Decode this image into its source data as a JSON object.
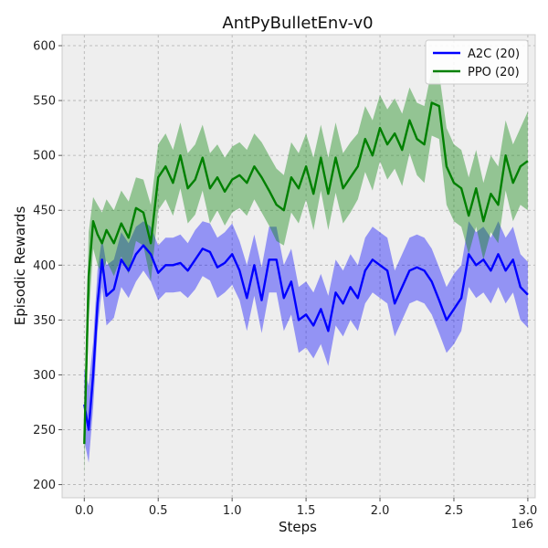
{
  "chart_data": {
    "type": "line",
    "title": "AntPyBulletEnv-v0",
    "xlabel": "Steps",
    "ylabel": "Episodic Rewards",
    "x_offset_label": "1e6",
    "xlim": [
      -0.15,
      3.05
    ],
    "ylim": [
      188,
      610
    ],
    "x_ticks": [
      0,
      0.5,
      1.0,
      1.5,
      2.0,
      2.5,
      3.0
    ],
    "x_tick_labels": [
      "0.0",
      "0.5",
      "1.0",
      "1.5",
      "2.0",
      "2.5",
      "3.0"
    ],
    "y_ticks": [
      200,
      250,
      300,
      350,
      400,
      450,
      500,
      550,
      600
    ],
    "y_tick_labels": [
      "200",
      "250",
      "300",
      "350",
      "400",
      "450",
      "500",
      "550",
      "600"
    ],
    "grid": true,
    "legend_position": "top-right",
    "colors": {
      "plot_bg": "#eeeeee",
      "grid": "#b0b0b0",
      "frame": "#cccccc"
    },
    "series": [
      {
        "name": "A2C (20)",
        "color": "#0000ff",
        "x": [
          0,
          0.03,
          0.06,
          0.09,
          0.12,
          0.15,
          0.2,
          0.25,
          0.3,
          0.35,
          0.4,
          0.45,
          0.5,
          0.55,
          0.6,
          0.65,
          0.7,
          0.75,
          0.8,
          0.85,
          0.9,
          0.95,
          1.0,
          1.05,
          1.1,
          1.15,
          1.2,
          1.25,
          1.3,
          1.35,
          1.4,
          1.45,
          1.5,
          1.55,
          1.6,
          1.65,
          1.7,
          1.75,
          1.8,
          1.85,
          1.9,
          1.95,
          2.0,
          2.05,
          2.1,
          2.15,
          2.2,
          2.25,
          2.3,
          2.35,
          2.4,
          2.45,
          2.5,
          2.55,
          2.6,
          2.65,
          2.7,
          2.75,
          2.8,
          2.85,
          2.9,
          2.95,
          3.0
        ],
        "y": [
          273,
          250,
          300,
          365,
          405,
          372,
          378,
          405,
          395,
          410,
          418,
          410,
          393,
          400,
          400,
          402,
          395,
          405,
          415,
          412,
          398,
          402,
          410,
          395,
          370,
          400,
          368,
          405,
          405,
          370,
          385,
          350,
          355,
          345,
          360,
          340,
          375,
          365,
          380,
          370,
          395,
          405,
          400,
          395,
          365,
          380,
          395,
          398,
          395,
          385,
          368,
          350,
          360,
          370,
          410,
          400,
          405,
          395,
          410,
          395,
          405,
          380,
          373
        ],
        "upper": [
          305,
          290,
          330,
          395,
          425,
          400,
          405,
          430,
          420,
          435,
          440,
          435,
          418,
          425,
          425,
          428,
          420,
          432,
          440,
          438,
          425,
          430,
          438,
          422,
          400,
          428,
          398,
          435,
          435,
          400,
          415,
          380,
          385,
          375,
          392,
          372,
          405,
          395,
          410,
          400,
          425,
          435,
          430,
          425,
          395,
          410,
          425,
          428,
          425,
          415,
          398,
          380,
          392,
          400,
          440,
          430,
          435,
          425,
          440,
          425,
          435,
          410,
          403
        ],
        "lower": [
          240,
          220,
          270,
          340,
          380,
          345,
          352,
          380,
          370,
          385,
          395,
          385,
          368,
          375,
          375,
          376,
          370,
          378,
          390,
          386,
          370,
          375,
          382,
          368,
          340,
          372,
          338,
          375,
          375,
          340,
          355,
          320,
          325,
          315,
          328,
          308,
          345,
          335,
          350,
          340,
          365,
          375,
          370,
          365,
          335,
          350,
          365,
          368,
          365,
          355,
          338,
          320,
          328,
          340,
          380,
          370,
          375,
          365,
          380,
          365,
          375,
          350,
          343
        ]
      },
      {
        "name": "PPO (20)",
        "color": "#008000",
        "x": [
          0,
          0.03,
          0.06,
          0.09,
          0.12,
          0.15,
          0.2,
          0.25,
          0.3,
          0.35,
          0.4,
          0.45,
          0.5,
          0.55,
          0.6,
          0.65,
          0.7,
          0.75,
          0.8,
          0.85,
          0.9,
          0.95,
          1.0,
          1.05,
          1.1,
          1.15,
          1.2,
          1.25,
          1.3,
          1.35,
          1.4,
          1.45,
          1.5,
          1.55,
          1.6,
          1.65,
          1.7,
          1.75,
          1.8,
          1.85,
          1.9,
          1.95,
          2.0,
          2.05,
          2.1,
          2.15,
          2.2,
          2.25,
          2.3,
          2.35,
          2.4,
          2.45,
          2.5,
          2.55,
          2.6,
          2.65,
          2.7,
          2.75,
          2.8,
          2.85,
          2.9,
          2.95,
          3.0
        ],
        "y": [
          237,
          390,
          440,
          428,
          420,
          432,
          420,
          438,
          425,
          452,
          448,
          420,
          480,
          490,
          475,
          500,
          470,
          478,
          498,
          470,
          480,
          467,
          478,
          482,
          475,
          490,
          480,
          468,
          455,
          450,
          480,
          470,
          490,
          465,
          498,
          465,
          498,
          470,
          480,
          490,
          515,
          500,
          525,
          510,
          520,
          505,
          532,
          515,
          510,
          548,
          545,
          490,
          475,
          470,
          445,
          470,
          440,
          465,
          455,
          500,
          475,
          490,
          495
        ],
        "upper": [
          265,
          430,
          462,
          455,
          448,
          460,
          450,
          468,
          458,
          480,
          478,
          455,
          510,
          520,
          505,
          530,
          502,
          510,
          528,
          502,
          510,
          498,
          508,
          512,
          505,
          520,
          512,
          500,
          488,
          482,
          512,
          502,
          520,
          498,
          528,
          498,
          530,
          502,
          512,
          520,
          545,
          532,
          555,
          542,
          552,
          538,
          562,
          548,
          545,
          578,
          575,
          525,
          510,
          505,
          480,
          505,
          475,
          500,
          490,
          532,
          510,
          525,
          540
        ],
        "lower": [
          208,
          350,
          415,
          400,
          392,
          404,
          390,
          408,
          392,
          422,
          418,
          385,
          450,
          460,
          445,
          470,
          438,
          446,
          468,
          438,
          450,
          436,
          448,
          452,
          445,
          460,
          448,
          436,
          422,
          418,
          448,
          438,
          460,
          432,
          468,
          432,
          466,
          438,
          448,
          460,
          485,
          468,
          495,
          478,
          488,
          472,
          502,
          482,
          475,
          518,
          515,
          455,
          440,
          435,
          410,
          435,
          405,
          430,
          420,
          468,
          440,
          455,
          450
        ]
      }
    ]
  }
}
